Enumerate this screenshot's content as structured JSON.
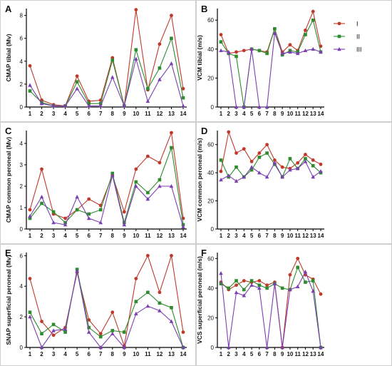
{
  "legend": {
    "position": "top-right",
    "entries": [
      {
        "label": "I",
        "color": "#c0392b",
        "marker": "circle"
      },
      {
        "label": "II",
        "color": "#2e8b2e",
        "marker": "square"
      },
      {
        "label": "III",
        "color": "#7b3fb3",
        "marker": "triangle"
      }
    ]
  },
  "chart_data": [
    {
      "panel": "A",
      "type": "line",
      "ylabel": "CMAP tibial (Mv)",
      "x": [
        1,
        2,
        3,
        4,
        5,
        6,
        7,
        8,
        9,
        10,
        11,
        12,
        13,
        14
      ],
      "ylim": [
        0,
        8.6
      ],
      "yticks": [
        0,
        2,
        4,
        6,
        8
      ],
      "grid": false,
      "series": [
        {
          "name": "I",
          "values": [
            3.6,
            0.6,
            0.2,
            0.1,
            2.7,
            0.5,
            0.6,
            4.3,
            0.1,
            8.5,
            1.5,
            5.5,
            8.0,
            1.6
          ]
        },
        {
          "name": "II",
          "values": [
            1.4,
            0.4,
            0.1,
            0.1,
            2.2,
            0.3,
            0.3,
            4.1,
            0.1,
            5.0,
            1.6,
            3.4,
            6.0,
            0.8
          ]
        },
        {
          "name": "III",
          "values": [
            1.9,
            0.3,
            0.1,
            0.1,
            1.6,
            0.1,
            0.1,
            2.6,
            0.1,
            4.2,
            0.5,
            2.4,
            3.8,
            0.1
          ]
        }
      ]
    },
    {
      "panel": "B",
      "type": "line",
      "ylabel": "VCM tibial (m/s)",
      "x": [
        1,
        2,
        3,
        4,
        5,
        6,
        7,
        8,
        9,
        10,
        11,
        12,
        13,
        14
      ],
      "ylim": [
        0,
        68
      ],
      "yticks": [
        0,
        20,
        40,
        60
      ],
      "grid": false,
      "series": [
        {
          "name": "I",
          "values": [
            50,
            37,
            38,
            39,
            40,
            39,
            38,
            54,
            38,
            43,
            39,
            53,
            66,
            42
          ]
        },
        {
          "name": "II",
          "values": [
            45,
            37,
            35,
            0,
            40,
            39,
            37,
            54,
            36,
            39,
            38,
            50,
            60,
            38
          ]
        },
        {
          "name": "III",
          "values": [
            39,
            38,
            0,
            0,
            40,
            0,
            0,
            51,
            37,
            38,
            37,
            39,
            40,
            38
          ]
        }
      ]
    },
    {
      "panel": "C",
      "type": "line",
      "ylabel": "CMAP common peroneal (Mv)",
      "x": [
        1,
        2,
        3,
        4,
        5,
        6,
        7,
        8,
        9,
        10,
        11,
        12,
        13,
        14
      ],
      "ylim": [
        0,
        4.6
      ],
      "yticks": [
        0,
        1,
        2,
        3,
        4
      ],
      "grid": false,
      "series": [
        {
          "name": "I",
          "values": [
            0.9,
            2.8,
            0.7,
            0.5,
            0.9,
            1.4,
            1.1,
            2.5,
            0.8,
            2.8,
            3.4,
            3.1,
            4.5,
            0.5
          ]
        },
        {
          "name": "II",
          "values": [
            0.5,
            1.2,
            0.8,
            0.3,
            0.9,
            0.7,
            0.9,
            2.6,
            0.3,
            2.2,
            1.7,
            2.3,
            3.8,
            0.2
          ]
        },
        {
          "name": "III",
          "values": [
            0.6,
            1.5,
            0.3,
            0.2,
            1.5,
            0.5,
            0.3,
            2.5,
            0.2,
            2.0,
            1.4,
            2.0,
            2.0,
            0.1
          ]
        }
      ]
    },
    {
      "panel": "D",
      "type": "line",
      "ylabel": "VCM common peroneal (m/s)",
      "x": [
        1,
        2,
        3,
        4,
        5,
        6,
        7,
        8,
        9,
        10,
        11,
        12,
        13,
        14
      ],
      "ylim": [
        0,
        70
      ],
      "yticks": [
        0,
        20,
        40,
        60
      ],
      "grid": false,
      "series": [
        {
          "name": "I",
          "values": [
            41,
            69,
            54,
            57,
            48,
            54,
            60,
            49,
            44,
            43,
            47,
            53,
            49,
            46
          ]
        },
        {
          "name": "II",
          "values": [
            49,
            37,
            44,
            37,
            42,
            51,
            54,
            46,
            37,
            50,
            43,
            50,
            45,
            40
          ]
        },
        {
          "name": "III",
          "values": [
            35,
            38,
            34,
            37,
            44,
            40,
            37,
            47,
            37,
            42,
            43,
            48,
            37,
            41
          ]
        }
      ]
    },
    {
      "panel": "E",
      "type": "line",
      "ylabel": "SNAP superficial peroneal (Mv)",
      "x": [
        1,
        2,
        3,
        4,
        5,
        6,
        7,
        8,
        9,
        10,
        11,
        12,
        13,
        14
      ],
      "ylim": [
        0,
        6.2
      ],
      "yticks": [
        0,
        2,
        4,
        6
      ],
      "grid": false,
      "series": [
        {
          "name": "I",
          "values": [
            4.5,
            1.7,
            0.8,
            1.3,
            4.9,
            1.8,
            0.9,
            2.3,
            0.1,
            4.5,
            6.0,
            3.6,
            6.0,
            1.0
          ]
        },
        {
          "name": "II",
          "values": [
            2.3,
            0.9,
            1.5,
            1.0,
            5.1,
            1.3,
            0.7,
            1.1,
            1.0,
            3.0,
            3.6,
            2.9,
            2.6,
            0.0
          ]
        },
        {
          "name": "III",
          "values": [
            2.0,
            0.0,
            1.1,
            1.2,
            5.0,
            1.0,
            0.0,
            0.9,
            0.0,
            2.2,
            2.7,
            2.4,
            1.7,
            0.0
          ]
        }
      ]
    },
    {
      "panel": "F",
      "type": "line",
      "ylabel": "VCS superficial peroneal (m/s)",
      "x": [
        1,
        2,
        3,
        4,
        5,
        6,
        7,
        8,
        9,
        10,
        11,
        12,
        13,
        14
      ],
      "ylim": [
        0,
        64
      ],
      "yticks": [
        0,
        20,
        40,
        60
      ],
      "grid": false,
      "series": [
        {
          "name": "I",
          "values": [
            44,
            39,
            42,
            45,
            44,
            45,
            42,
            44,
            0,
            49,
            60,
            49,
            46,
            36
          ]
        },
        {
          "name": "II",
          "values": [
            43,
            40,
            45,
            39,
            45,
            42,
            40,
            43,
            40,
            39,
            54,
            44,
            45,
            0
          ]
        },
        {
          "name": "III",
          "values": [
            50,
            0,
            37,
            35,
            42,
            40,
            0,
            43,
            0,
            39,
            41,
            51,
            38,
            0
          ]
        }
      ]
    }
  ]
}
